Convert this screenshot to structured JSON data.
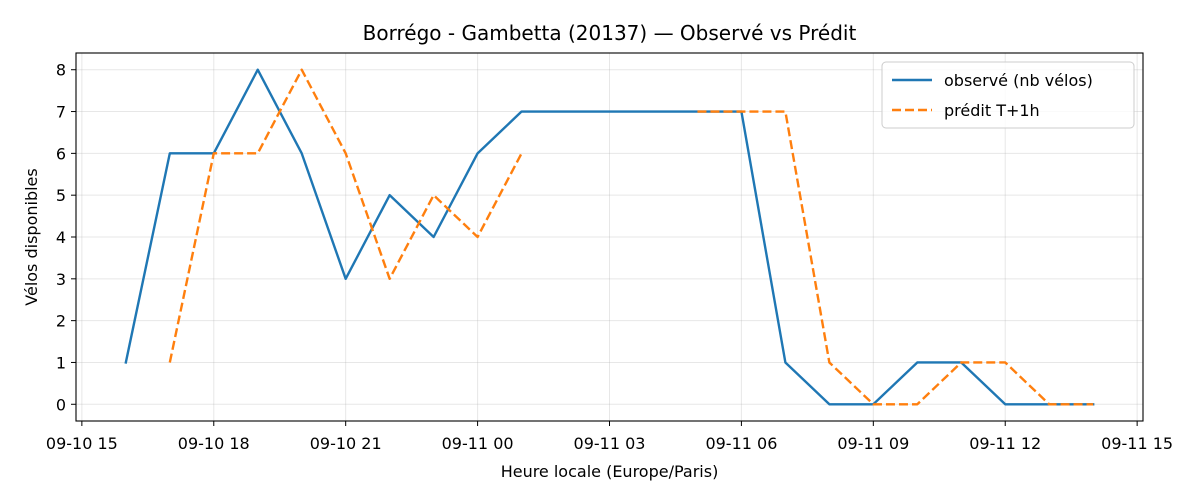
{
  "chart_data": {
    "type": "line",
    "title": "Borrégo - Gambetta (20137) — Observé vs Prédit",
    "xlabel": "Heure locale (Europe/Paris)",
    "ylabel": "Vélos disponibles",
    "x_unit": "datetime",
    "xlim": [
      "2024-09-10 14:52",
      "2024-09-11 15:08"
    ],
    "ylim": [
      -0.4,
      8.4
    ],
    "grid": true,
    "legend_position": "top-right",
    "x_ticks": [
      {
        "value": "2024-09-10 15:00",
        "label": "09-10 15"
      },
      {
        "value": "2024-09-10 18:00",
        "label": "09-10 18"
      },
      {
        "value": "2024-09-10 21:00",
        "label": "09-10 21"
      },
      {
        "value": "2024-09-11 00:00",
        "label": "09-11 00"
      },
      {
        "value": "2024-09-11 03:00",
        "label": "09-11 03"
      },
      {
        "value": "2024-09-11 06:00",
        "label": "09-11 06"
      },
      {
        "value": "2024-09-11 09:00",
        "label": "09-11 09"
      },
      {
        "value": "2024-09-11 12:00",
        "label": "09-11 12"
      },
      {
        "value": "2024-09-11 15:00",
        "label": "09-11 15"
      }
    ],
    "y_ticks": [
      0,
      1,
      2,
      3,
      4,
      5,
      6,
      7,
      8
    ],
    "series": [
      {
        "name": "observé (nb vélos)",
        "color": "#1f77b4",
        "style": "solid",
        "segments": [
          [
            {
              "x": "2024-09-10 16:00",
              "y": 1
            },
            {
              "x": "2024-09-10 17:00",
              "y": 6
            },
            {
              "x": "2024-09-10 18:00",
              "y": 6
            },
            {
              "x": "2024-09-10 19:00",
              "y": 8
            },
            {
              "x": "2024-09-10 20:00",
              "y": 6
            },
            {
              "x": "2024-09-10 21:00",
              "y": 3
            },
            {
              "x": "2024-09-10 22:00",
              "y": 5
            },
            {
              "x": "2024-09-10 23:00",
              "y": 4
            },
            {
              "x": "2024-09-11 00:00",
              "y": 6
            },
            {
              "x": "2024-09-11 01:00",
              "y": 7
            },
            {
              "x": "2024-09-11 06:00",
              "y": 7
            },
            {
              "x": "2024-09-11 07:00",
              "y": 1
            },
            {
              "x": "2024-09-11 08:00",
              "y": 0
            },
            {
              "x": "2024-09-11 09:00",
              "y": 0
            },
            {
              "x": "2024-09-11 10:00",
              "y": 1
            },
            {
              "x": "2024-09-11 11:00",
              "y": 1
            },
            {
              "x": "2024-09-11 12:00",
              "y": 0
            },
            {
              "x": "2024-09-11 13:00",
              "y": 0
            },
            {
              "x": "2024-09-11 14:00",
              "y": 0
            }
          ]
        ]
      },
      {
        "name": "prédit T+1h",
        "color": "#ff7f0e",
        "style": "dashed",
        "segments": [
          [
            {
              "x": "2024-09-10 17:00",
              "y": 1
            },
            {
              "x": "2024-09-10 18:00",
              "y": 6
            },
            {
              "x": "2024-09-10 19:00",
              "y": 6
            },
            {
              "x": "2024-09-10 20:00",
              "y": 8
            },
            {
              "x": "2024-09-10 21:00",
              "y": 6
            },
            {
              "x": "2024-09-10 22:00",
              "y": 3
            },
            {
              "x": "2024-09-10 23:00",
              "y": 5
            },
            {
              "x": "2024-09-11 00:00",
              "y": 4
            },
            {
              "x": "2024-09-11 01:00",
              "y": 6
            }
          ],
          [
            {
              "x": "2024-09-11 05:00",
              "y": 7
            },
            {
              "x": "2024-09-11 06:00",
              "y": 7
            },
            {
              "x": "2024-09-11 07:00",
              "y": 7
            },
            {
              "x": "2024-09-11 08:00",
              "y": 1
            },
            {
              "x": "2024-09-11 09:00",
              "y": 0
            },
            {
              "x": "2024-09-11 10:00",
              "y": 0
            },
            {
              "x": "2024-09-11 11:00",
              "y": 1
            },
            {
              "x": "2024-09-11 12:00",
              "y": 1
            },
            {
              "x": "2024-09-11 13:00",
              "y": 0
            },
            {
              "x": "2024-09-11 14:00",
              "y": 0
            }
          ]
        ]
      }
    ]
  }
}
